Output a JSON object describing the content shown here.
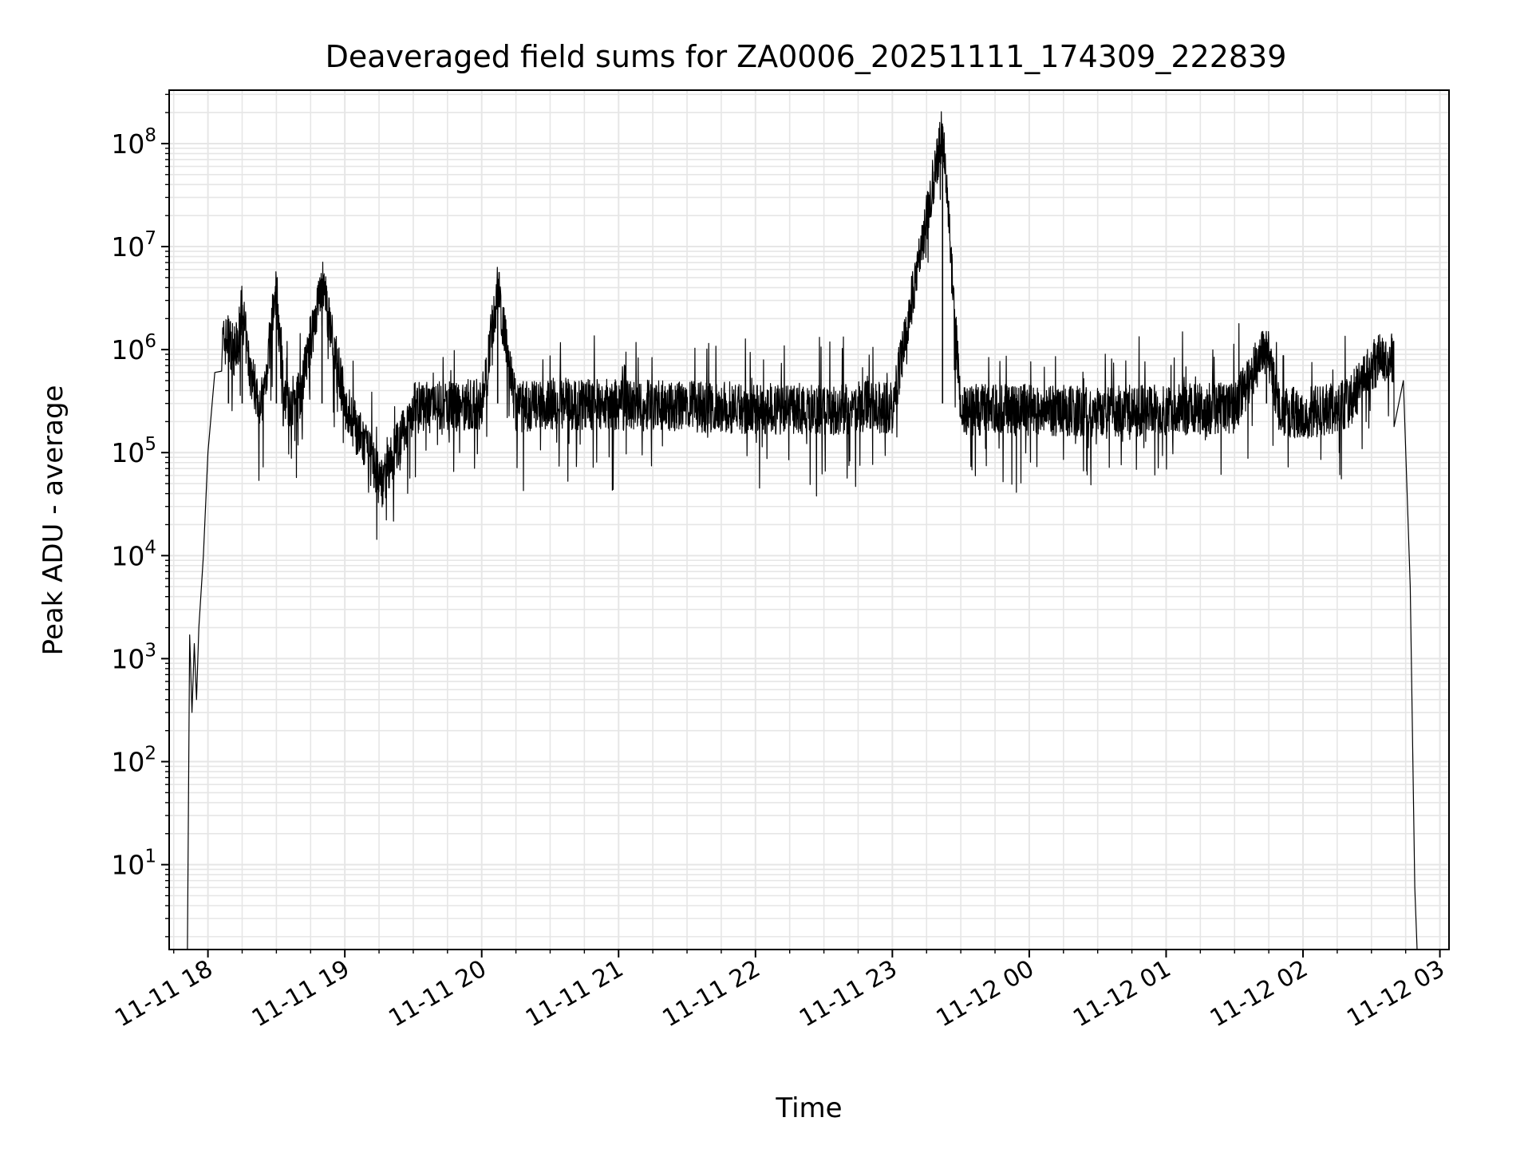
{
  "chart_data": {
    "type": "line",
    "title": "Deaveraged field sums for ZA0006_20251111_174309_222839",
    "xlabel": "Time",
    "ylabel": "Peak ADU - average",
    "yscale": "log",
    "xlim": [
      "2025-11-11 17:43",
      "2025-11-12 03:04"
    ],
    "ylim": [
      1.5,
      330000000
    ],
    "grid": "major and minor",
    "legend": "none",
    "x_ticks": [
      "11-11 18",
      "11-11 19",
      "11-11 20",
      "11-11 21",
      "11-11 22",
      "11-11 23",
      "11-12 00",
      "11-12 01",
      "11-12 02",
      "11-12 03"
    ],
    "y_ticks": [
      {
        "base": "10",
        "exp": "1",
        "value": 10
      },
      {
        "base": "10",
        "exp": "2",
        "value": 100
      },
      {
        "base": "10",
        "exp": "3",
        "value": 1000
      },
      {
        "base": "10",
        "exp": "4",
        "value": 10000
      },
      {
        "base": "10",
        "exp": "5",
        "value": 100000
      },
      {
        "base": "10",
        "exp": "6",
        "value": 1000000
      },
      {
        "base": "10",
        "exp": "7",
        "value": 10000000
      },
      {
        "base": "10",
        "exp": "8",
        "value": 100000000
      }
    ],
    "line_color": "#000000",
    "series": [
      {
        "x": [
          "2025-11-11 17:51",
          "2025-11-11 17:52",
          "2025-11-11 17:53",
          "2025-11-11 17:54",
          "2025-11-11 17:55",
          "2025-11-11 17:56",
          "2025-11-11 17:58",
          "2025-11-11 18:00",
          "2025-11-11 18:03",
          "2025-11-11 18:06",
          "2025-11-11 18:09",
          "2025-11-11 18:12",
          "2025-11-11 18:15",
          "2025-11-11 18:18",
          "2025-11-11 18:21",
          "2025-11-11 18:24",
          "2025-11-11 18:30",
          "2025-11-11 18:33",
          "2025-11-11 18:40",
          "2025-11-11 18:50",
          "2025-11-11 19:00",
          "2025-11-11 19:16",
          "2025-11-11 19:30",
          "2025-11-11 19:45",
          "2025-11-11 20:00",
          "2025-11-11 20:07",
          "2025-11-11 20:15",
          "2025-11-11 20:30",
          "2025-11-11 21:00",
          "2025-11-11 21:30",
          "2025-11-11 22:00",
          "2025-11-11 22:30",
          "2025-11-11 22:50",
          "2025-11-11 23:00",
          "2025-11-11 23:22",
          "2025-11-11 23:30",
          "2025-11-12 00:00",
          "2025-11-12 00:30",
          "2025-11-12 01:00",
          "2025-11-12 01:30",
          "2025-11-12 01:44",
          "2025-11-12 01:50",
          "2025-11-12 02:00",
          "2025-11-12 02:10",
          "2025-11-12 02:20",
          "2025-11-12 02:30",
          "2025-11-12 02:35",
          "2025-11-12 02:40",
          "2025-11-12 02:44",
          "2025-11-12 02:47",
          "2025-11-12 02:49",
          "2025-11-12 02:50"
        ],
        "y": [
          1.5,
          1700,
          300,
          1400,
          400,
          2000,
          10000,
          100000,
          600000,
          1100000,
          1300000,
          900000,
          2500000,
          700000,
          400000,
          300000,
          4200000,
          280000,
          350000,
          4500000,
          300000,
          50000,
          270000,
          280000,
          300000,
          4100000,
          270000,
          300000,
          290000,
          280000,
          270000,
          260000,
          280000,
          270000,
          140000000,
          260000,
          260000,
          250000,
          260000,
          270000,
          1100000,
          250000,
          240000,
          260000,
          300000,
          700000,
          850000,
          800000,
          500000,
          5000,
          6,
          1.5
        ]
      }
    ]
  }
}
